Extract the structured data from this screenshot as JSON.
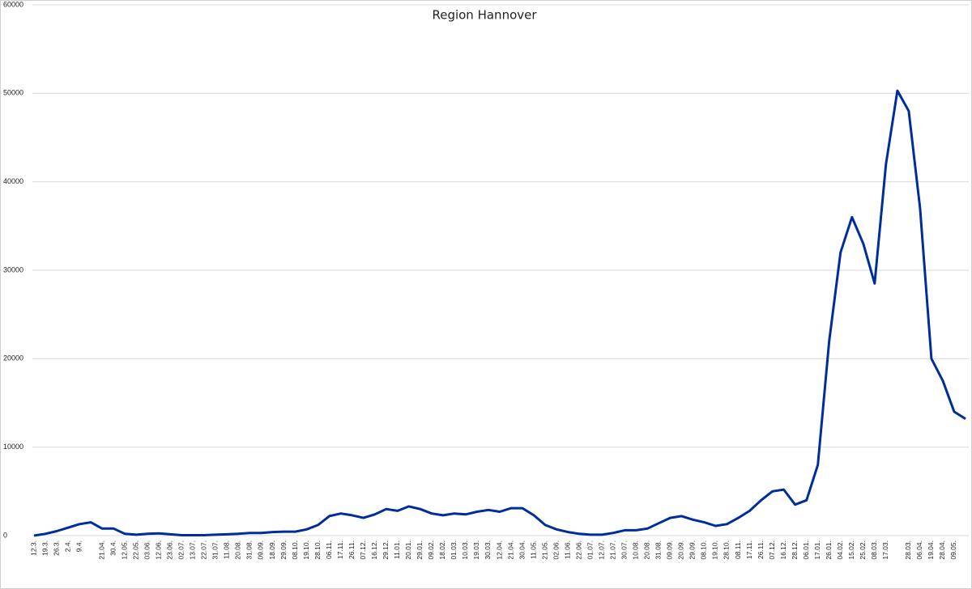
{
  "chart_data": {
    "type": "line",
    "title": "Region Hannover",
    "categories": [
      "12.3.",
      "19.3.",
      "26.3.",
      "2.4.",
      "9.4.",
      null,
      "21.04.",
      "30.4.",
      "12.05.",
      "22.05.",
      "03.06.",
      "12.06.",
      "23.06.",
      "02.07.",
      "13.07.",
      "22.07.",
      "31.07.",
      "11.08.",
      "20.08.",
      "31.08.",
      "09.09.",
      "18.09.",
      "29.09.",
      "08.10.",
      "19.10.",
      "28.10.",
      "06.11.",
      "17.11.",
      "26.11.",
      "07.12.",
      "16.12.",
      "29.12.",
      "11.01.",
      "20.01.",
      "29.01.",
      "09.02.",
      "18.02.",
      "01.03.",
      "10.03.",
      "19.03.",
      "30.03.",
      "12.04.",
      "21.04.",
      "30.04.",
      "11.05.",
      "21.05.",
      "02.06.",
      "11.06.",
      "22.06.",
      "01.07.",
      "12.07.",
      "21.07.",
      "30.07.",
      "10.08.",
      "20.08.",
      "31.08.",
      "09.09.",
      "20.09.",
      "29.09.",
      "08.10.",
      "19.10.",
      "28.10.",
      "08.11.",
      "17.11.",
      "26.11.",
      "07.12.",
      "16.12.",
      "28.12.",
      "06.01.",
      "17.01.",
      "26.01.",
      "04.02.",
      "15.02.",
      "25.02.",
      "08.03.",
      "17.03.",
      null,
      "28.03.",
      "06.04.",
      "19.04.",
      "28.04.",
      "09.05.",
      null
    ],
    "series": [
      {
        "name": "Region Hannover",
        "color": "#002d9c",
        "values": [
          0,
          200,
          500,
          900,
          1300,
          1500,
          800,
          800,
          200,
          100,
          200,
          250,
          150,
          50,
          50,
          50,
          100,
          150,
          200,
          300,
          300,
          400,
          450,
          450,
          700,
          1200,
          2200,
          2500,
          2300,
          2000,
          2400,
          3000,
          2800,
          3300,
          3000,
          2500,
          2300,
          2500,
          2400,
          2700,
          2900,
          2700,
          3100,
          3100,
          2300,
          1200,
          700,
          400,
          200,
          100,
          100,
          300,
          600,
          600,
          800,
          1400,
          2000,
          2200,
          1800,
          1500,
          1100,
          1300,
          2000,
          2800,
          4000,
          5000,
          5200,
          3500,
          4000,
          8000,
          22000,
          32000,
          36000,
          33000,
          28500,
          42000,
          50300,
          48000,
          37000,
          20000,
          17500,
          14000,
          13200
        ]
      }
    ],
    "ylim": [
      0,
      60000
    ],
    "yticks": [
      0,
      10000,
      20000,
      30000,
      40000,
      50000,
      60000
    ],
    "grid": true
  }
}
